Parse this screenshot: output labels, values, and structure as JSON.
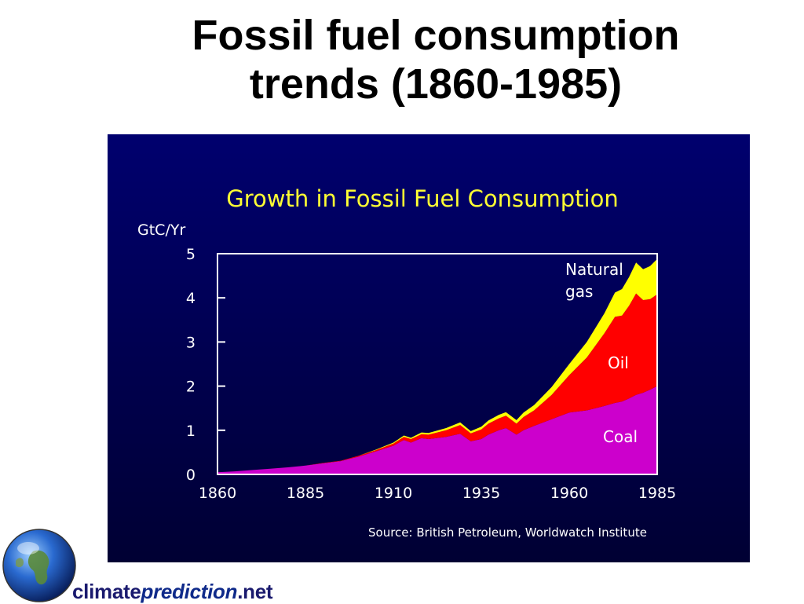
{
  "slide": {
    "title_line1": "Fossil fuel consumption",
    "title_line2": "trends (1860-1985)"
  },
  "logo": {
    "part1": "climate",
    "part2": "prediction",
    "part3": ".net"
  },
  "colors": {
    "panel_top": "#00006e",
    "panel_bottom": "#000033",
    "coal": "#cc00cc",
    "oil": "#ff0000",
    "gas": "#ffff00",
    "chart_title": "#ffff33",
    "text": "#ffffff"
  },
  "chart_data": {
    "type": "area",
    "stacked": true,
    "title": "Growth in Fossil Fuel Consumption",
    "ylabel": "GtC/Yr",
    "xlabel": "",
    "xlim": [
      1860,
      1985
    ],
    "ylim": [
      0,
      5
    ],
    "x_ticks": [
      "1860",
      "1885",
      "1910",
      "1935",
      "1960",
      "1985"
    ],
    "y_ticks": [
      "0",
      "1",
      "2",
      "3",
      "4",
      "5"
    ],
    "grid": false,
    "source": "Source: British Petroleum, Worldwatch Institute",
    "series_labels": {
      "gas_line1": "Natural",
      "gas_line2": "gas",
      "oil": "Oil",
      "coal": "Coal"
    },
    "x": [
      1860,
      1865,
      1870,
      1875,
      1880,
      1885,
      1890,
      1895,
      1900,
      1905,
      1910,
      1913,
      1915,
      1918,
      1920,
      1925,
      1929,
      1932,
      1935,
      1937,
      1940,
      1942,
      1945,
      1947,
      1950,
      1955,
      1960,
      1965,
      1970,
      1973,
      1975,
      1977,
      1979,
      1981,
      1983,
      1985
    ],
    "series": [
      {
        "name": "Coal",
        "values": [
          0.05,
          0.07,
          0.1,
          0.13,
          0.16,
          0.2,
          0.25,
          0.3,
          0.4,
          0.52,
          0.65,
          0.78,
          0.72,
          0.82,
          0.8,
          0.85,
          0.92,
          0.75,
          0.8,
          0.9,
          1.0,
          1.05,
          0.9,
          1.0,
          1.1,
          1.25,
          1.4,
          1.45,
          1.55,
          1.62,
          1.65,
          1.72,
          1.8,
          1.85,
          1.92,
          2.0
        ]
      },
      {
        "name": "Oil",
        "values": [
          0.0,
          0.0,
          0.0,
          0.0,
          0.0,
          0.0,
          0.01,
          0.01,
          0.02,
          0.03,
          0.05,
          0.07,
          0.08,
          0.09,
          0.1,
          0.15,
          0.2,
          0.18,
          0.22,
          0.25,
          0.27,
          0.28,
          0.25,
          0.3,
          0.35,
          0.55,
          0.85,
          1.2,
          1.65,
          1.95,
          1.95,
          2.1,
          2.3,
          2.1,
          2.05,
          2.08
        ]
      },
      {
        "name": "Natural gas",
        "values": [
          0.0,
          0.0,
          0.0,
          0.0,
          0.0,
          0.0,
          0.0,
          0.0,
          0.0,
          0.01,
          0.02,
          0.03,
          0.03,
          0.04,
          0.04,
          0.05,
          0.06,
          0.05,
          0.06,
          0.07,
          0.08,
          0.08,
          0.08,
          0.1,
          0.12,
          0.18,
          0.25,
          0.35,
          0.45,
          0.55,
          0.6,
          0.65,
          0.7,
          0.7,
          0.75,
          0.8
        ]
      }
    ]
  }
}
